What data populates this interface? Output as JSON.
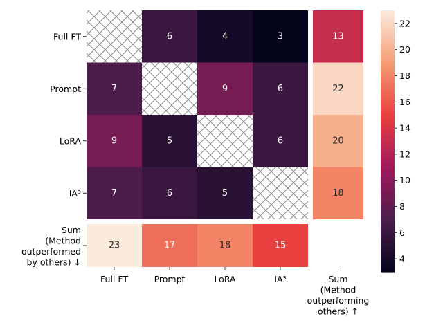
{
  "chart_data": {
    "type": "heatmap",
    "title": "",
    "rows": [
      "Full FT",
      "Prompt",
      "LoRA",
      "IA³"
    ],
    "columns": [
      "Full FT",
      "Prompt",
      "LoRA",
      "IA³"
    ],
    "values": [
      [
        null,
        6,
        4,
        3
      ],
      [
        7,
        null,
        9,
        6
      ],
      [
        9,
        5,
        null,
        6
      ],
      [
        7,
        6,
        5,
        null
      ]
    ],
    "diagonal": "hatched",
    "row_sums": {
      "label_lines": [
        "Sum",
        "(Method",
        "outperforming",
        "others) ↑"
      ],
      "values": [
        13,
        22,
        20,
        18
      ]
    },
    "col_sums": {
      "label_lines": [
        "Sum",
        "(Method",
        "outperformed",
        "by others) ↓"
      ],
      "values": [
        23,
        17,
        18,
        15
      ]
    },
    "colorbar": {
      "min": 3,
      "max": 23,
      "ticks": [
        4,
        6,
        8,
        10,
        12,
        14,
        16,
        18,
        20,
        22
      ]
    },
    "colormap": "rocket",
    "colormap_stops": [
      "#03051a",
      "#4c1d4b",
      "#a11a5b",
      "#e83f3f",
      "#f69c73",
      "#faebdd"
    ]
  }
}
